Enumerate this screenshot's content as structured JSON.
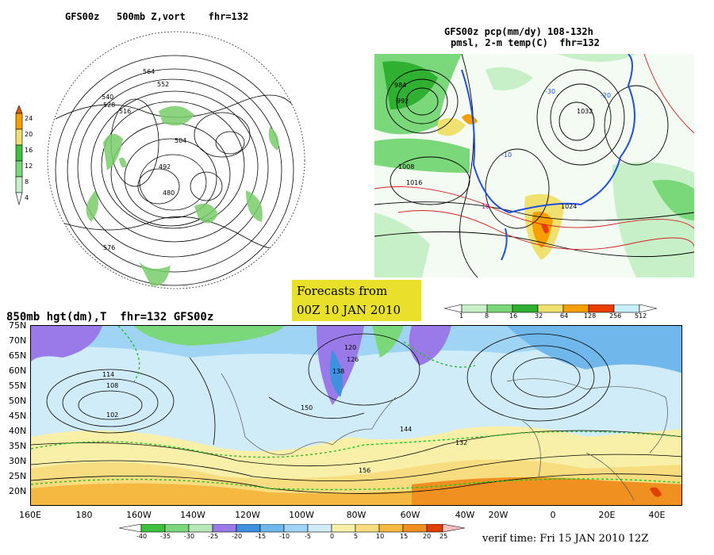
{
  "panels": {
    "polar": {
      "title": "GFS00z   500mb Z,vort    fhr=132",
      "scale_ticks": [
        "24",
        "20",
        "16",
        "12",
        "8",
        "4"
      ],
      "contour_labels": [
        "564",
        "552",
        "540",
        "528",
        "516",
        "504",
        "492",
        "480",
        "576"
      ]
    },
    "precip": {
      "title_line1": "GFS00z pcp(mm/dy) 108-132h",
      "title_line2": "pmsl, 2-m temp(C)  fhr=132",
      "scale_ticks": [
        "1",
        "8",
        "16",
        "32",
        "64",
        "128",
        "256",
        "512"
      ],
      "contour_labels": [
        "1008",
        "1016",
        "1024",
        "1032",
        "10",
        "-10",
        "-30",
        "-20",
        "984",
        "992"
      ]
    },
    "h850": {
      "title": "850mb hgt(dm),T  fhr=132 GFS00z",
      "lat_labels": [
        "75N",
        "70N",
        "65N",
        "60N",
        "55N",
        "50N",
        "45N",
        "40N",
        "35N",
        "30N",
        "25N",
        "20N"
      ],
      "lon_labels": [
        "160E",
        "180",
        "160W",
        "140W",
        "120W",
        "100W",
        "80W",
        "60W",
        "40W",
        "20W",
        "0",
        "20E",
        "40E"
      ],
      "contour_labels": [
        "120",
        "126",
        "132",
        "138",
        "144",
        "150",
        "156",
        "114",
        "108",
        "102"
      ],
      "temp_scale": [
        "-40",
        "-35",
        "-30",
        "-25",
        "-20",
        "-15",
        "-10",
        "-5",
        "0",
        "5",
        "10",
        "15",
        "20",
        "25"
      ],
      "verif_time": "verif time: Fri 15 JAN 2010 12Z"
    }
  },
  "forecast_box": {
    "line1": "Forecasts from",
    "line2": "00Z 10 JAN 2010"
  },
  "colors": {
    "vort_scale": [
      "#e65c00",
      "#f5a000",
      "#f0e070",
      "#40c040",
      "#7ad87a",
      "#c8f0c8"
    ],
    "precip_scale": [
      "#ffffff",
      "#c8f0c8",
      "#7ad87a",
      "#30b030",
      "#f0e070",
      "#f5a000",
      "#e84000",
      "#c8f0f8"
    ],
    "temp_scale": [
      "#40c040",
      "#7ad87a",
      "#b8e8b8",
      "#9a7ae8",
      "#4090e0",
      "#70b8ec",
      "#a0d4f4",
      "#d0ecf8",
      "#f8f0a8",
      "#f8dc80",
      "#f5b840",
      "#f09020",
      "#e04000"
    ]
  }
}
